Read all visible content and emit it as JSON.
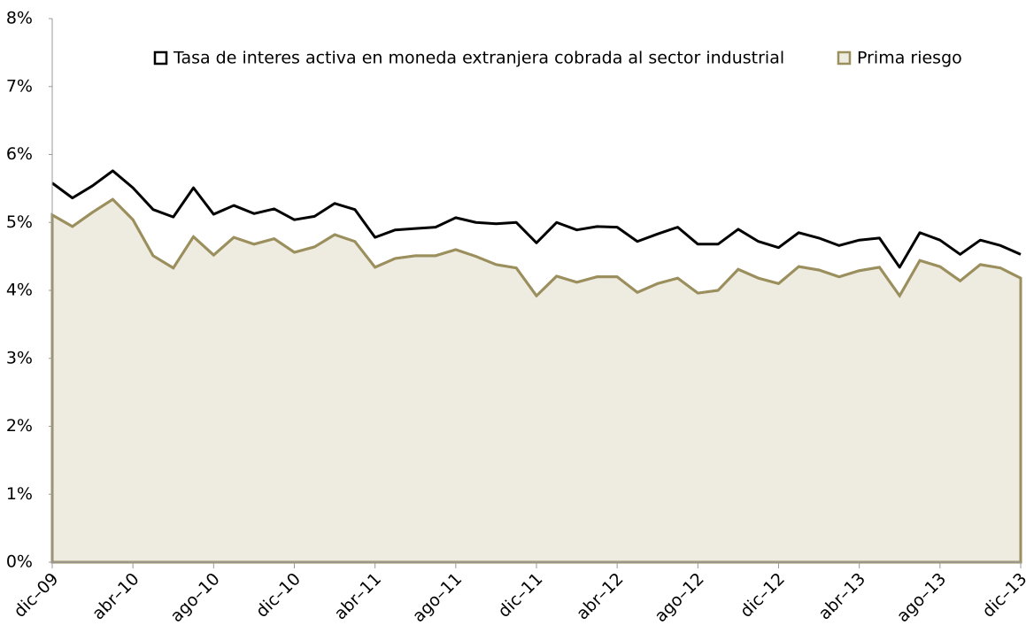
{
  "chart_data": {
    "type": "line",
    "categories": [
      "dic–09",
      null,
      null,
      null,
      "abr–10",
      null,
      null,
      null,
      "ago–10",
      null,
      null,
      null,
      "dic–10",
      null,
      null,
      null,
      "abr–11",
      null,
      null,
      null,
      "ago–11",
      null,
      null,
      null,
      "dic–11",
      null,
      null,
      null,
      "abr–12",
      null,
      null,
      null,
      "ago–12",
      null,
      null,
      null,
      "dic–12",
      null,
      null,
      null,
      "abr–13",
      null,
      null,
      null,
      "ago–13",
      null,
      null,
      null,
      "dic–13"
    ],
    "series": [
      {
        "name": "Tasa de interes activa en moneda extranjera cobrada al sector industrial",
        "color": "#000000",
        "values": [
          5.58,
          5.36,
          5.54,
          5.76,
          5.51,
          5.19,
          5.08,
          5.51,
          5.12,
          5.25,
          5.13,
          5.2,
          5.04,
          5.09,
          5.28,
          5.19,
          4.78,
          4.89,
          4.91,
          4.93,
          5.07,
          5.0,
          4.98,
          5.0,
          4.7,
          5.0,
          4.89,
          4.94,
          4.93,
          4.72,
          4.83,
          4.93,
          4.68,
          4.68,
          4.9,
          4.72,
          4.63,
          4.85,
          4.77,
          4.66,
          4.74,
          4.77,
          4.34,
          4.85,
          4.74,
          4.53,
          4.74,
          4.66,
          4.53
        ]
      },
      {
        "name": "Prima riesgo",
        "color": "#9b8f5e",
        "fill": "#eeebe1",
        "values": [
          5.11,
          4.94,
          5.15,
          5.34,
          5.04,
          4.51,
          4.33,
          4.79,
          4.52,
          4.78,
          4.68,
          4.76,
          4.56,
          4.64,
          4.82,
          4.72,
          4.34,
          4.47,
          4.51,
          4.51,
          4.6,
          4.5,
          4.38,
          4.33,
          3.92,
          4.21,
          4.12,
          4.2,
          4.2,
          3.97,
          4.1,
          4.18,
          3.96,
          4.0,
          4.31,
          4.18,
          4.1,
          4.35,
          4.3,
          4.2,
          4.29,
          4.34,
          3.92,
          4.44,
          4.35,
          4.14,
          4.38,
          4.33,
          4.18
        ]
      }
    ],
    "ylim": [
      0,
      8
    ],
    "yticks": [
      {
        "value": 0,
        "label": "0%"
      },
      {
        "value": 1,
        "label": "1%"
      },
      {
        "value": 2,
        "label": "2%"
      },
      {
        "value": 3,
        "label": "3%"
      },
      {
        "value": 4,
        "label": "4%"
      },
      {
        "value": 5,
        "label": "5%"
      },
      {
        "value": 6,
        "label": "6%"
      },
      {
        "value": 7,
        "label": "7%"
      },
      {
        "value": 8,
        "label": "8%"
      }
    ],
    "grid": false,
    "legend": "top"
  }
}
